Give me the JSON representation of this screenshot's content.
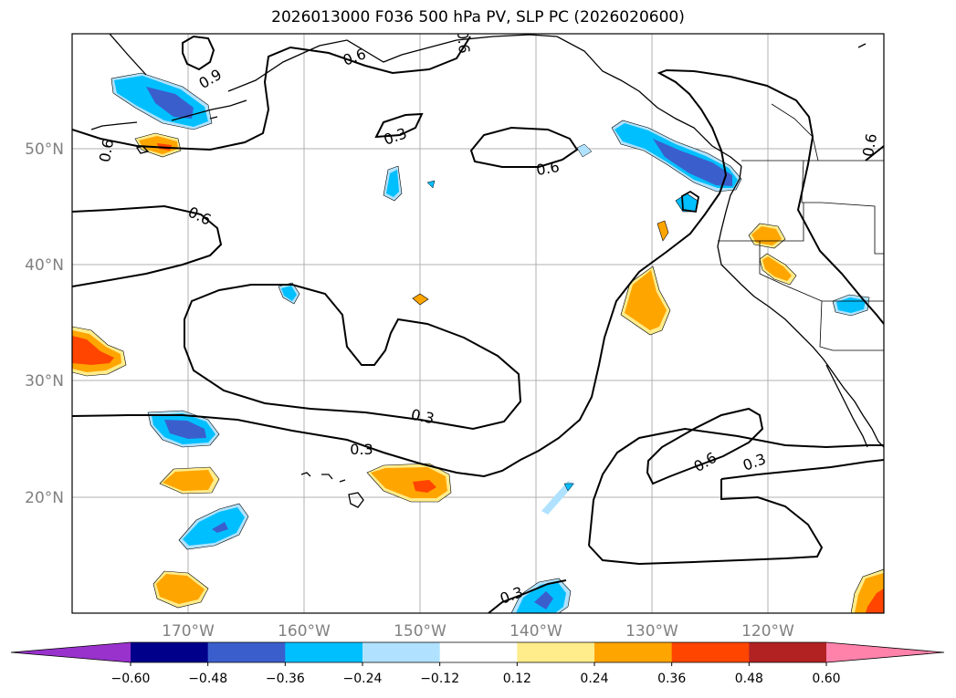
{
  "title": "2026013000 F036 500 hPa PV, SLP PC (2026020600)",
  "map": {
    "projection": "plate-carree",
    "lon_range": [
      -180,
      -110
    ],
    "lat_range": [
      10,
      60
    ],
    "lat_ticks": [
      {
        "value": 20,
        "label": "20°N"
      },
      {
        "value": 30,
        "label": "30°N"
      },
      {
        "value": 40,
        "label": "40°N"
      },
      {
        "value": 50,
        "label": "50°N"
      }
    ],
    "lon_ticks": [
      {
        "value": -170,
        "label": "170°W"
      },
      {
        "value": -160,
        "label": "160°W"
      },
      {
        "value": -150,
        "label": "150°W"
      },
      {
        "value": -140,
        "label": "140°W"
      },
      {
        "value": -130,
        "label": "130°W"
      },
      {
        "value": -120,
        "label": "120°W"
      }
    ],
    "grid": true,
    "contour_labels": [
      "0.9",
      "0.6",
      "0.6",
      "0.3",
      "0.6",
      "0.6",
      "0.6",
      "0.6",
      "0.3",
      "0.3",
      "0.6",
      "0.3",
      "0.3"
    ]
  },
  "colorbar": {
    "ticks": [
      "−0.60",
      "−0.48",
      "−0.36",
      "−0.24",
      "−0.12",
      "0.12",
      "0.24",
      "0.36",
      "0.48",
      "0.60"
    ],
    "colors": [
      "#9932cc",
      "#00008b",
      "#3a5fcd",
      "#00bfff",
      "#b0e2ff",
      "#ffffff",
      "#ffec8b",
      "#ffa500",
      "#ff4500",
      "#b22222",
      "#ff82ab"
    ],
    "extend": "both"
  }
}
